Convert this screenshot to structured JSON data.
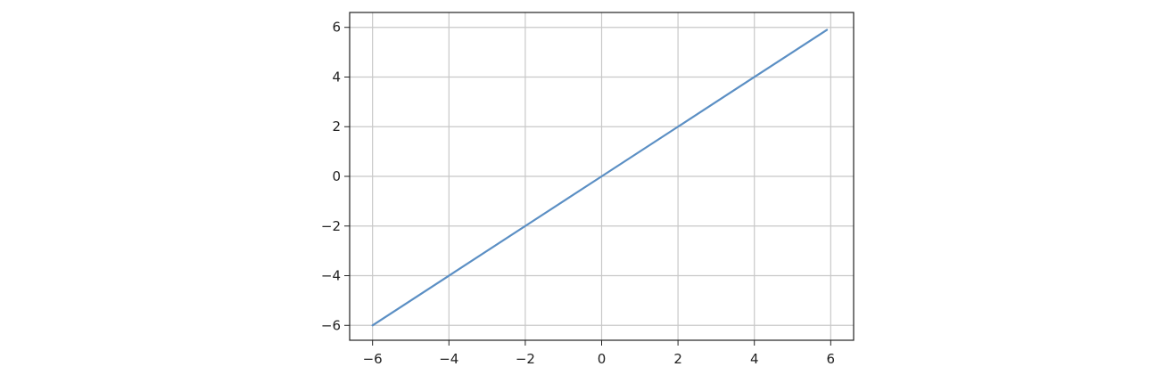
{
  "chart_data": {
    "type": "line",
    "title": "",
    "xlabel": "",
    "ylabel": "",
    "xlim": [
      -6.6,
      6.6
    ],
    "ylim": [
      -6.6,
      6.6
    ],
    "grid": true,
    "x_ticks": [
      -6,
      -4,
      -2,
      0,
      2,
      4,
      6
    ],
    "y_ticks": [
      -6,
      -4,
      -2,
      0,
      2,
      4,
      6
    ],
    "x_tick_labels": [
      "−6",
      "−4",
      "−2",
      "0",
      "2",
      "4",
      "6"
    ],
    "y_tick_labels": [
      "−6",
      "−4",
      "−2",
      "0",
      "2",
      "4",
      "6"
    ],
    "series": [
      {
        "color": "#5b8fc4",
        "x": [
          -6,
          -4,
          -2,
          0,
          2,
          4,
          5.9
        ],
        "y": [
          -6,
          -4,
          -2,
          0,
          2,
          4,
          5.9
        ]
      }
    ]
  }
}
